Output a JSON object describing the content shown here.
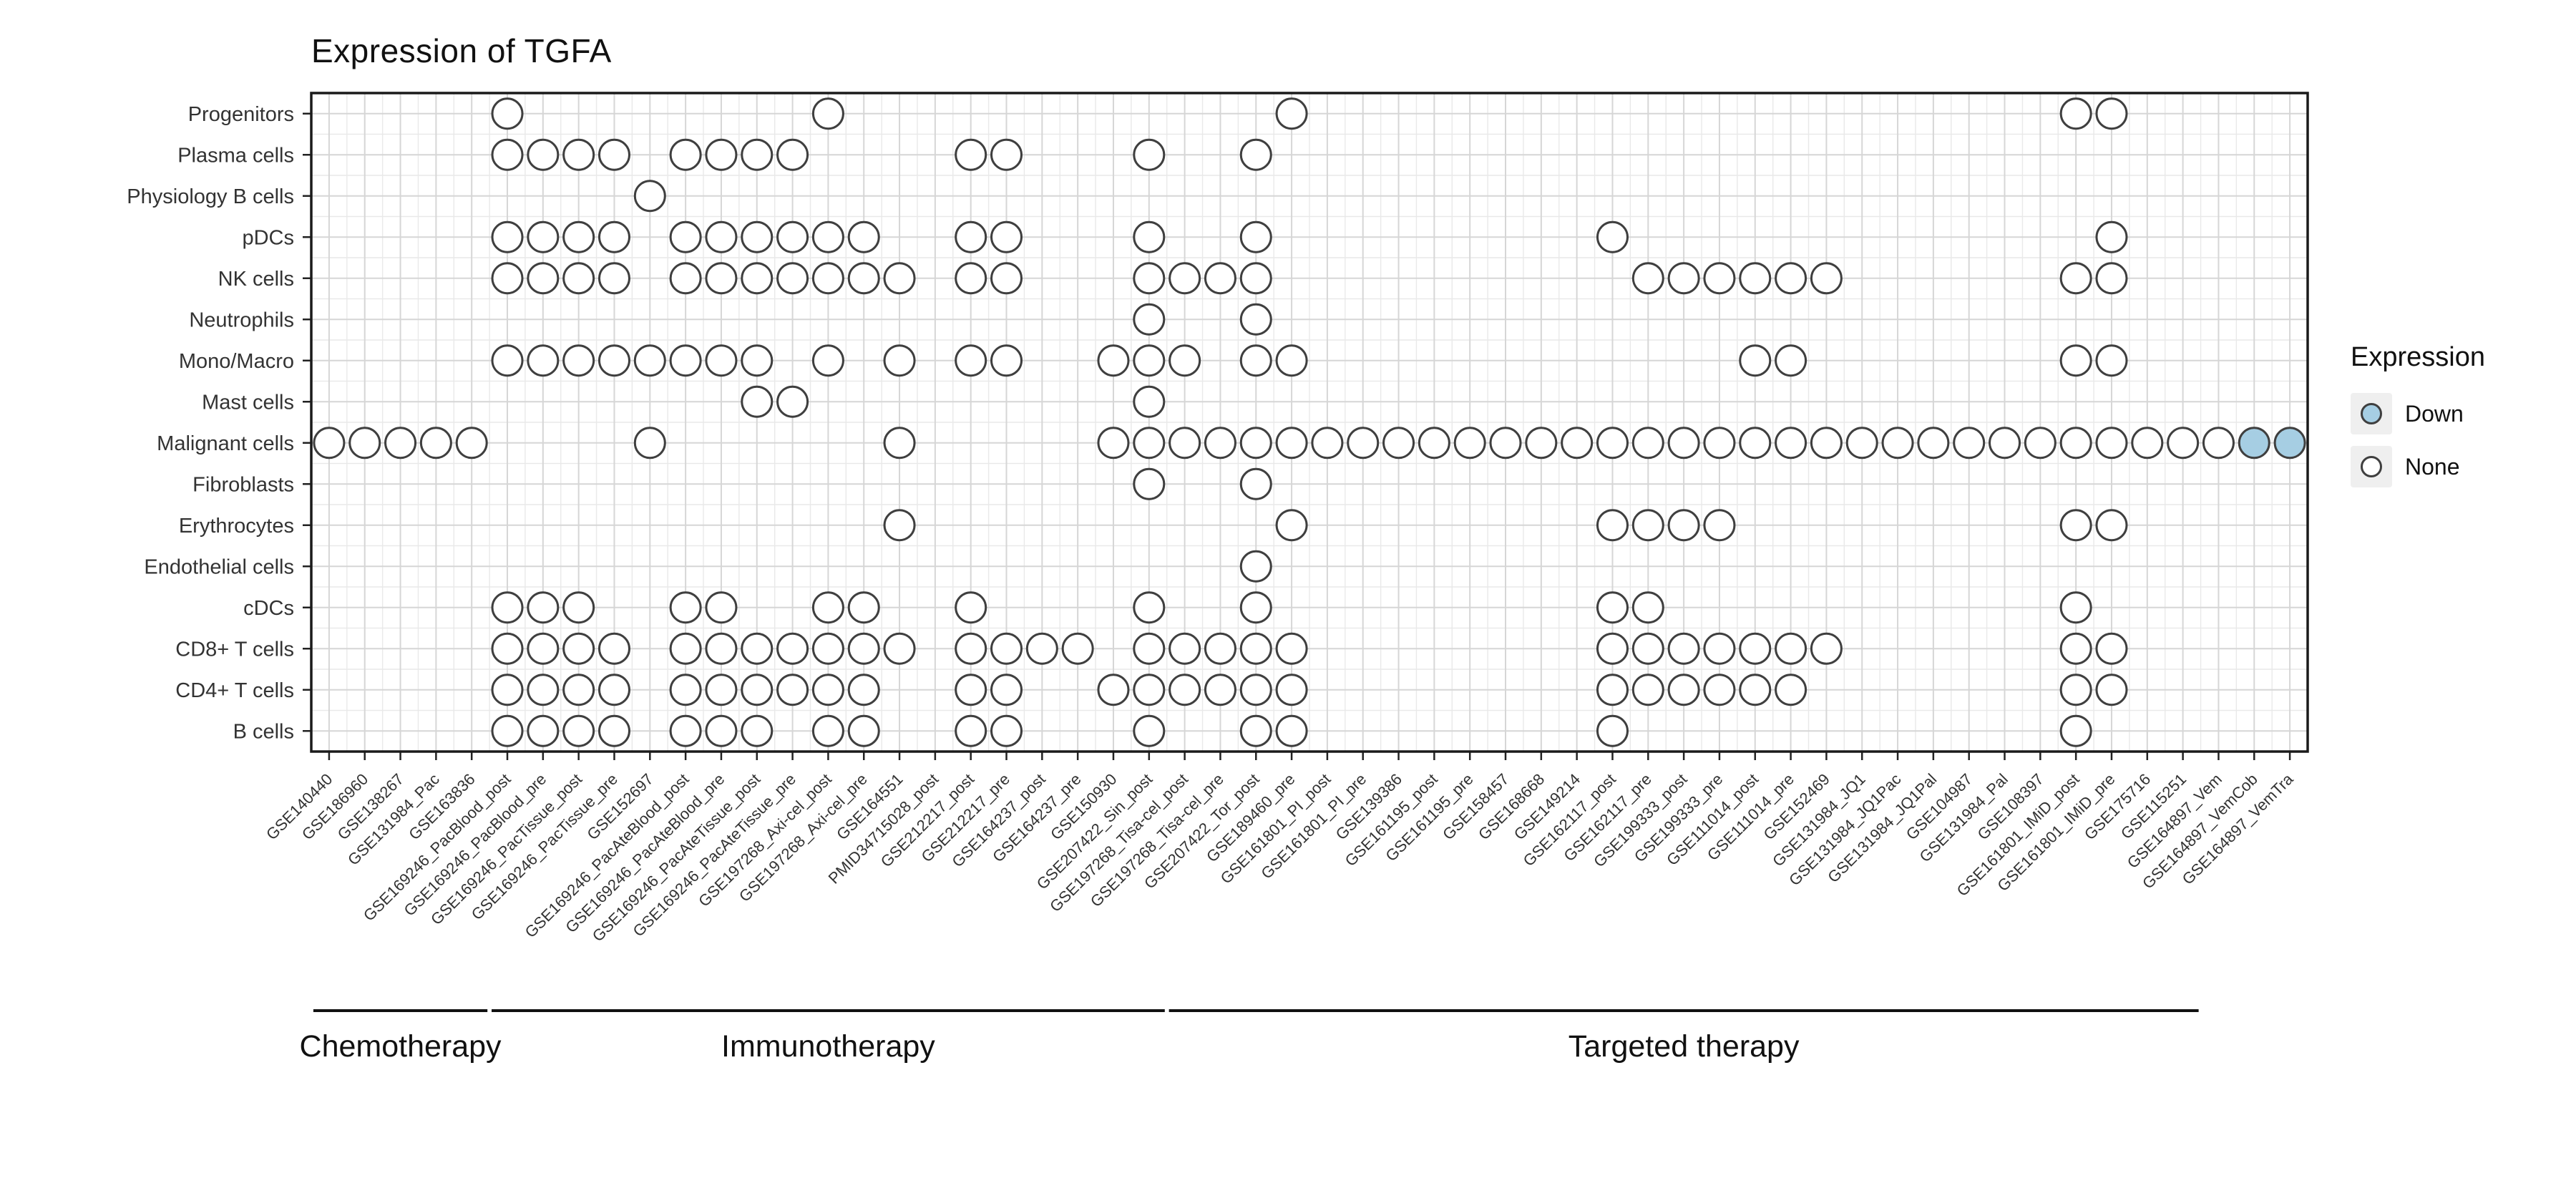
{
  "title": "Expression of TGFA",
  "legend": {
    "title": "Expression",
    "items": [
      {
        "label": "Down",
        "type": "down"
      },
      {
        "label": "None",
        "type": "none"
      }
    ]
  },
  "colors": {
    "down_fill": "#a6cee3",
    "none_fill": "#ffffff",
    "dot_stroke": "#3f3f3f",
    "grid_major": "#d6d6d6",
    "grid_minor": "#e9e9e9",
    "panel_border": "#1a1a1a",
    "axis_text": "#333333",
    "tick": "#222222",
    "group_line": "#111111"
  },
  "chart_data": {
    "type": "scatter",
    "title": "Expression of TGFA",
    "marker": "open-circle",
    "grid": true,
    "legend": {
      "title": "Expression",
      "entries": [
        "Down",
        "None"
      ],
      "position": "right"
    },
    "x_categories": [
      "GSE140440",
      "GSE186960",
      "GSE138267",
      "GSE131984_Pac",
      "GSE163836",
      "GSE169246_PacBlood_post",
      "GSE169246_PacBlood_pre",
      "GSE169246_PacTissue_post",
      "GSE169246_PacTissue_pre",
      "GSE152697",
      "GSE169246_PacAteBlood_post",
      "GSE169246_PacAteBlood_pre",
      "GSE169246_PacAteTissue_post",
      "GSE169246_PacAteTissue_pre",
      "GSE197268_Axi-cel_post",
      "GSE197268_Axi-cel_pre",
      "GSE164551",
      "PMID34715028_post",
      "GSE212217_post",
      "GSE212217_pre",
      "GSE164237_post",
      "GSE164237_pre",
      "GSE150930",
      "GSE207422_Sin_post",
      "GSE197268_Tisa-cel_post",
      "GSE197268_Tisa-cel_pre",
      "GSE207422_Tor_post",
      "GSE189460_pre",
      "GSE161801_PI_post",
      "GSE161801_PI_pre",
      "GSE139386",
      "GSE161195_post",
      "GSE161195_pre",
      "GSE158457",
      "GSE168668",
      "GSE149214",
      "GSE162117_post",
      "GSE162117_pre",
      "GSE199333_post",
      "GSE199333_pre",
      "GSE111014_post",
      "GSE111014_pre",
      "GSE152469",
      "GSE131984_JQ1",
      "GSE131984_JQ1Pac",
      "GSE131984_JQ1Pal",
      "GSE104987",
      "GSE131984_Pal",
      "GSE108397",
      "GSE161801_IMiD_post",
      "GSE161801_IMiD_pre",
      "GSE175716",
      "GSE115251",
      "GSE164897_Vem",
      "GSE164897_VemCob",
      "GSE164897_VemTra"
    ],
    "y_categories": [
      "Progenitors",
      "Plasma cells",
      "Physiology B cells",
      "pDCs",
      "NK cells",
      "Neutrophils",
      "Mono/Macro",
      "Mast cells",
      "Malignant cells",
      "Fibroblasts",
      "Erythrocytes",
      "Endothelial cells",
      "cDCs",
      "CD8+ T cells",
      "CD4+ T cells",
      "B cells"
    ],
    "rows": [
      {
        "cell_type": "Progenitors",
        "none_cols": [
          5,
          14,
          27,
          49,
          50
        ],
        "down_cols": []
      },
      {
        "cell_type": "Plasma cells",
        "none_cols": [
          5,
          6,
          7,
          8,
          10,
          11,
          12,
          13,
          18,
          19,
          23,
          26
        ],
        "down_cols": []
      },
      {
        "cell_type": "Physiology B cells",
        "none_cols": [
          9
        ],
        "down_cols": []
      },
      {
        "cell_type": "pDCs",
        "none_cols": [
          5,
          6,
          7,
          8,
          10,
          11,
          12,
          13,
          14,
          15,
          18,
          19,
          23,
          26,
          36,
          50
        ],
        "down_cols": []
      },
      {
        "cell_type": "NK cells",
        "none_cols": [
          5,
          6,
          7,
          8,
          10,
          11,
          12,
          13,
          14,
          15,
          16,
          18,
          19,
          23,
          24,
          25,
          26,
          37,
          38,
          39,
          40,
          41,
          42,
          49,
          50
        ],
        "down_cols": []
      },
      {
        "cell_type": "Neutrophils",
        "none_cols": [
          23,
          26
        ],
        "down_cols": []
      },
      {
        "cell_type": "Mono/Macro",
        "none_cols": [
          5,
          6,
          7,
          8,
          9,
          10,
          11,
          12,
          14,
          16,
          18,
          19,
          22,
          23,
          24,
          26,
          27,
          40,
          41,
          49,
          50
        ],
        "down_cols": []
      },
      {
        "cell_type": "Mast cells",
        "none_cols": [
          12,
          13,
          23
        ],
        "down_cols": []
      },
      {
        "cell_type": "Malignant cells",
        "none_cols": [
          0,
          1,
          2,
          3,
          4,
          9,
          16,
          22,
          23,
          24,
          25,
          26,
          27,
          28,
          29,
          30,
          31,
          32,
          33,
          34,
          35,
          36,
          37,
          38,
          39,
          40,
          41,
          42,
          43,
          44,
          45,
          46,
          47,
          48,
          49,
          50,
          51,
          52,
          53
        ],
        "down_cols": [
          54,
          55
        ]
      },
      {
        "cell_type": "Fibroblasts",
        "none_cols": [
          23,
          26
        ],
        "down_cols": []
      },
      {
        "cell_type": "Erythrocytes",
        "none_cols": [
          16,
          27,
          36,
          37,
          38,
          39,
          49,
          50
        ],
        "down_cols": []
      },
      {
        "cell_type": "Endothelial cells",
        "none_cols": [
          26
        ],
        "down_cols": []
      },
      {
        "cell_type": "cDCs",
        "none_cols": [
          5,
          6,
          7,
          10,
          11,
          14,
          15,
          18,
          23,
          26,
          36,
          37,
          49
        ],
        "down_cols": []
      },
      {
        "cell_type": "CD8+ T cells",
        "none_cols": [
          5,
          6,
          7,
          8,
          10,
          11,
          12,
          13,
          14,
          15,
          16,
          18,
          19,
          20,
          21,
          23,
          24,
          25,
          26,
          27,
          36,
          37,
          38,
          39,
          40,
          41,
          42,
          49,
          50
        ],
        "down_cols": []
      },
      {
        "cell_type": "CD4+ T cells",
        "none_cols": [
          5,
          6,
          7,
          8,
          10,
          11,
          12,
          13,
          14,
          15,
          18,
          19,
          22,
          23,
          24,
          25,
          26,
          27,
          36,
          37,
          38,
          39,
          40,
          41,
          49,
          50
        ],
        "down_cols": []
      },
      {
        "cell_type": "B cells",
        "none_cols": [
          5,
          6,
          7,
          8,
          10,
          11,
          12,
          14,
          15,
          18,
          19,
          23,
          26,
          27,
          36,
          49
        ],
        "down_cols": []
      }
    ],
    "therapy_groups": [
      {
        "label": "Chemotherapy",
        "col_start": 0,
        "col_end": 4
      },
      {
        "label": "Immunotherapy",
        "col_start": 5,
        "col_end": 23
      },
      {
        "label": "Targeted therapy",
        "col_start": 24,
        "col_end": 52
      }
    ]
  }
}
